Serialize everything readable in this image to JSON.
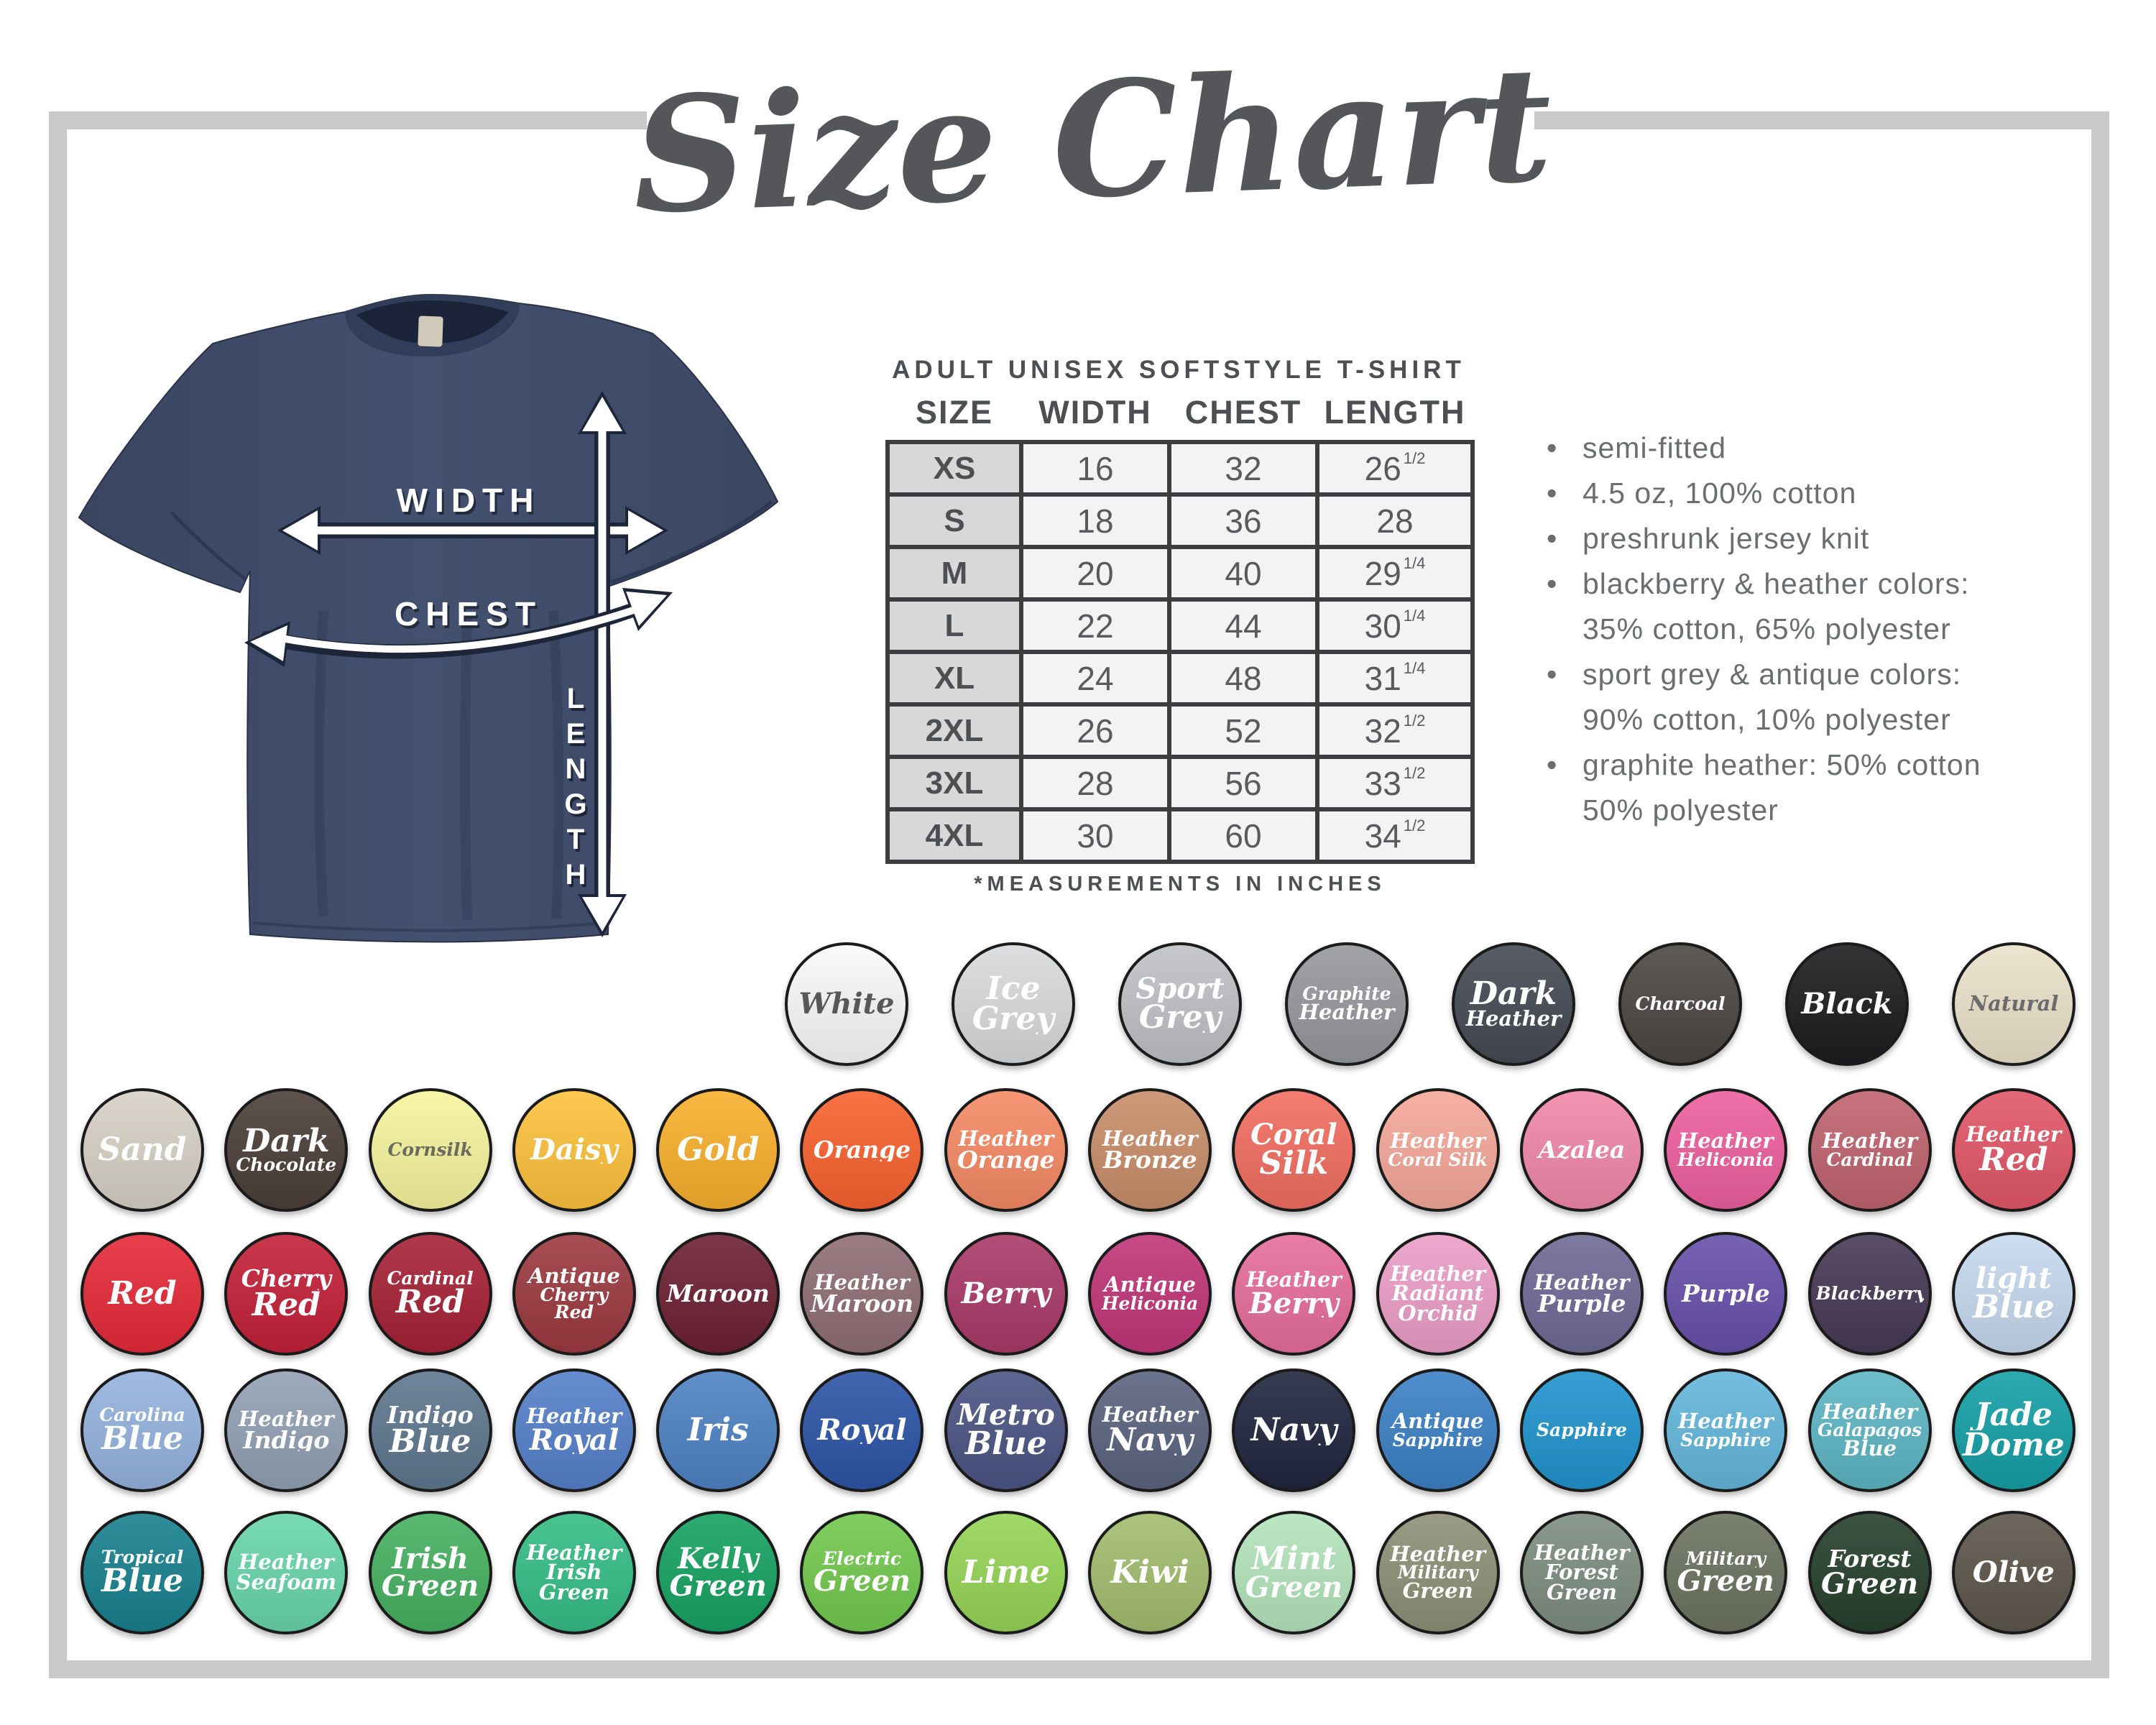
{
  "title": "Size Chart",
  "colors": {
    "frame": "#cacaca",
    "title_text": "#55565a",
    "table_border": "#3d3d3f",
    "size_column_bg": "#d8d8d8",
    "cell_bg": "#f3f3f4",
    "shirt_navy": "#3f4b6a",
    "feature_text": "#6c6d70"
  },
  "diagram": {
    "labels": {
      "width": "WIDTH",
      "chest": "CHEST",
      "length": "LENGTH"
    }
  },
  "product": {
    "heading": "ADULT UNISEX SOFTSTYLE T-SHIRT",
    "table": {
      "columns": [
        "SIZE",
        "WIDTH",
        "CHEST",
        "LENGTH"
      ],
      "rows": [
        {
          "size": "XS",
          "width": "16",
          "chest": "32",
          "length": "26",
          "frac": "1/2"
        },
        {
          "size": "S",
          "width": "18",
          "chest": "36",
          "length": "28",
          "frac": ""
        },
        {
          "size": "M",
          "width": "20",
          "chest": "40",
          "length": "29",
          "frac": "1/4"
        },
        {
          "size": "L",
          "width": "22",
          "chest": "44",
          "length": "30",
          "frac": "1/4"
        },
        {
          "size": "XL",
          "width": "24",
          "chest": "48",
          "length": "31",
          "frac": "1/4"
        },
        {
          "size": "2XL",
          "width": "26",
          "chest": "52",
          "length": "32",
          "frac": "1/2"
        },
        {
          "size": "3XL",
          "width": "28",
          "chest": "56",
          "length": "33",
          "frac": "1/2"
        },
        {
          "size": "4XL",
          "width": "30",
          "chest": "60",
          "length": "34",
          "frac": "1/2"
        }
      ],
      "footnote": "*MEASUREMENTS IN INCHES"
    },
    "features": [
      {
        "bullet": true,
        "text": "semi-fitted"
      },
      {
        "bullet": true,
        "text": "4.5 oz, 100% cotton"
      },
      {
        "bullet": true,
        "text": "preshrunk jersey knit"
      },
      {
        "bullet": true,
        "text": "blackberry & heather colors:"
      },
      {
        "bullet": false,
        "text": "35% cotton, 65% polyester"
      },
      {
        "bullet": true,
        "text": "sport grey & antique colors:"
      },
      {
        "bullet": false,
        "text": "90% cotton, 10% polyester"
      },
      {
        "bullet": true,
        "text": "graphite heather: 50% cotton"
      },
      {
        "bullet": false,
        "text": "50% polyester"
      }
    ]
  },
  "swatch_rows": [
    {
      "items": [
        {
          "name": "White",
          "color": "#f9f9f9",
          "text_color": "#58585a",
          "lines": [
            "White"
          ]
        },
        {
          "name": "Ice Grey",
          "color": "#d9dadb",
          "text_color": "#ffffff",
          "lines": [
            "Ice",
            "Grey"
          ]
        },
        {
          "name": "Sport Grey",
          "color": "#bfc1c6",
          "text_color": "#ffffff",
          "lines": [
            "Sport",
            "Grey"
          ]
        },
        {
          "name": "Graphite Heather",
          "color": "#97989c",
          "text_color": "#ffffff",
          "lines": [
            "Graphite",
            "Heather"
          ]
        },
        {
          "name": "Dark Heather",
          "color": "#454a54",
          "text_color": "#ffffff",
          "lines": [
            "Dark",
            "Heather"
          ]
        },
        {
          "name": "Charcoal",
          "color": "#4b4743",
          "text_color": "#ffffff",
          "lines": [
            "Charcoal"
          ]
        },
        {
          "name": "Black",
          "color": "#1d1d1f",
          "text_color": "#ffffff",
          "lines": [
            "Black"
          ]
        },
        {
          "name": "Natural",
          "color": "#ebe1ca",
          "text_color": "#6b6b6d",
          "lines": [
            "Natural"
          ]
        }
      ]
    },
    {
      "items": [
        {
          "name": "Sand",
          "color": "#d7d1c6",
          "text_color": "#ffffff",
          "lines": [
            "Sand"
          ]
        },
        {
          "name": "Dark Chocolate",
          "color": "#4b4038",
          "text_color": "#ffffff",
          "lines": [
            "Dark",
            "Chocolate"
          ]
        },
        {
          "name": "Cornsilk",
          "color": "#f6f49e",
          "text_color": "#6a6a5f",
          "lines": [
            "Cornsilk"
          ]
        },
        {
          "name": "Daisy",
          "color": "#fcc23c",
          "text_color": "#ffffff",
          "lines": [
            "Daisy"
          ]
        },
        {
          "name": "Gold",
          "color": "#f8b02c",
          "text_color": "#ffffff",
          "lines": [
            "Gold"
          ]
        },
        {
          "name": "Orange",
          "color": "#f9622f",
          "text_color": "#ffffff",
          "lines": [
            "Orange"
          ]
        },
        {
          "name": "Heather Orange",
          "color": "#f58a64",
          "text_color": "#ffffff",
          "lines": [
            "Heather",
            "Orange"
          ]
        },
        {
          "name": "Heather Bronze",
          "color": "#c98e6a",
          "text_color": "#ffffff",
          "lines": [
            "Heather",
            "Bronze"
          ]
        },
        {
          "name": "Coral Silk",
          "color": "#f26e60",
          "text_color": "#ffffff",
          "lines": [
            "Coral",
            "Silk"
          ]
        },
        {
          "name": "Heather Coral Silk",
          "color": "#f5a89a",
          "text_color": "#ffffff",
          "lines": [
            "Heather",
            "Coral Silk"
          ]
        },
        {
          "name": "Azalea",
          "color": "#f287aa",
          "text_color": "#ffffff",
          "lines": [
            "Azalea"
          ]
        },
        {
          "name": "Heather Heliconia",
          "color": "#ee5f9e",
          "text_color": "#ffffff",
          "lines": [
            "Heather",
            "Heliconia"
          ]
        },
        {
          "name": "Heather Cardinal",
          "color": "#c06470",
          "text_color": "#ffffff",
          "lines": [
            "Heather",
            "Cardinal"
          ]
        },
        {
          "name": "Heather Red",
          "color": "#e25768",
          "text_color": "#ffffff",
          "lines": [
            "Heather",
            "Red"
          ]
        }
      ]
    },
    {
      "items": [
        {
          "name": "Red",
          "color": "#e62a39",
          "text_color": "#ffffff",
          "lines": [
            "Red"
          ]
        },
        {
          "name": "Cherry Red",
          "color": "#c42139",
          "text_color": "#ffffff",
          "lines": [
            "Cherry",
            "Red"
          ]
        },
        {
          "name": "Cardinal Red",
          "color": "#a62236",
          "text_color": "#ffffff",
          "lines": [
            "Cardinal",
            "Red"
          ]
        },
        {
          "name": "Antique Cherry Red",
          "color": "#9b3a40",
          "text_color": "#ffffff",
          "lines": [
            "Antique",
            "Cherry Red"
          ]
        },
        {
          "name": "Maroon",
          "color": "#6d2134",
          "text_color": "#ffffff",
          "lines": [
            "Maroon"
          ]
        },
        {
          "name": "Heather Maroon",
          "color": "#8f6e74",
          "text_color": "#ffffff",
          "lines": [
            "Heather",
            "Maroon"
          ]
        },
        {
          "name": "Berry",
          "color": "#aa3a69",
          "text_color": "#ffffff",
          "lines": [
            "Berry"
          ]
        },
        {
          "name": "Antique Heliconia",
          "color": "#c13579",
          "text_color": "#ffffff",
          "lines": [
            "Antique",
            "Heliconia"
          ]
        },
        {
          "name": "Heather Berry",
          "color": "#e66e9b",
          "text_color": "#ffffff",
          "lines": [
            "Heather",
            "Berry"
          ]
        },
        {
          "name": "Heather Radiant Orchid",
          "color": "#ec9ec8",
          "text_color": "#ffffff",
          "lines": [
            "Heather",
            "Radiant",
            "Orchid"
          ]
        },
        {
          "name": "Heather Purple",
          "color": "#6f6a95",
          "text_color": "#ffffff",
          "lines": [
            "Heather",
            "Purple"
          ]
        },
        {
          "name": "Purple",
          "color": "#6750aa",
          "text_color": "#ffffff",
          "lines": [
            "Purple"
          ]
        },
        {
          "name": "Blackberry",
          "color": "#463a55",
          "text_color": "#ffffff",
          "lines": [
            "Blackberry"
          ]
        },
        {
          "name": "Light Blue",
          "color": "#c6d9ef",
          "text_color": "#ffffff",
          "lines": [
            "light",
            "Blue"
          ]
        }
      ]
    },
    {
      "items": [
        {
          "name": "Carolina Blue",
          "color": "#95b3de",
          "text_color": "#ffffff",
          "lines": [
            "Carolina",
            "Blue"
          ]
        },
        {
          "name": "Heather Indigo",
          "color": "#92a1b4",
          "text_color": "#ffffff",
          "lines": [
            "Heather",
            "Indigo"
          ]
        },
        {
          "name": "Indigo Blue",
          "color": "#5e778f",
          "text_color": "#ffffff",
          "lines": [
            "Indigo",
            "Blue"
          ]
        },
        {
          "name": "Heather Royal",
          "color": "#5580ca",
          "text_color": "#ffffff",
          "lines": [
            "Heather",
            "Royal"
          ]
        },
        {
          "name": "Iris",
          "color": "#4e83c3",
          "text_color": "#ffffff",
          "lines": [
            "Iris"
          ]
        },
        {
          "name": "Royal",
          "color": "#2c54a6",
          "text_color": "#ffffff",
          "lines": [
            "Royal"
          ]
        },
        {
          "name": "Metro Blue",
          "color": "#4b5583",
          "text_color": "#ffffff",
          "lines": [
            "Metro",
            "Blue"
          ]
        },
        {
          "name": "Heather Navy",
          "color": "#5b6480",
          "text_color": "#ffffff",
          "lines": [
            "Heather",
            "Navy"
          ]
        },
        {
          "name": "Navy",
          "color": "#20263f",
          "text_color": "#ffffff",
          "lines": [
            "Navy"
          ]
        },
        {
          "name": "Antique Sapphire",
          "color": "#3c81c5",
          "text_color": "#ffffff",
          "lines": [
            "Antique",
            "Sapphire"
          ]
        },
        {
          "name": "Sapphire",
          "color": "#2094cd",
          "text_color": "#ffffff",
          "lines": [
            "Sapphire"
          ]
        },
        {
          "name": "Heather Sapphire",
          "color": "#64b7dc",
          "text_color": "#ffffff",
          "lines": [
            "Heather",
            "Sapphire"
          ]
        },
        {
          "name": "Heather Galapagos Blue",
          "color": "#5db7c4",
          "text_color": "#ffffff",
          "lines": [
            "Heather",
            "Galapagos",
            "Blue"
          ]
        },
        {
          "name": "Jade Dome",
          "color": "#15a0a6",
          "text_color": "#ffffff",
          "lines": [
            "Jade",
            "Dome"
          ]
        }
      ]
    },
    {
      "items": [
        {
          "name": "Tropical Blue",
          "color": "#18818e",
          "text_color": "#ffffff",
          "lines": [
            "Tropical",
            "Blue"
          ]
        },
        {
          "name": "Heather Seafoam",
          "color": "#68d6ab",
          "text_color": "#ffffff",
          "lines": [
            "Heather",
            "Seafoam"
          ]
        },
        {
          "name": "Irish Green",
          "color": "#47b160",
          "text_color": "#ffffff",
          "lines": [
            "Irish",
            "Green"
          ]
        },
        {
          "name": "Heather Irish Green",
          "color": "#36bd87",
          "text_color": "#ffffff",
          "lines": [
            "Heather",
            "Irish",
            "Green"
          ]
        },
        {
          "name": "Kelly Green",
          "color": "#17a260",
          "text_color": "#ffffff",
          "lines": [
            "Kelly",
            "Green"
          ]
        },
        {
          "name": "Electric Green",
          "color": "#72c94e",
          "text_color": "#ffffff",
          "lines": [
            "Electric",
            "Green"
          ]
        },
        {
          "name": "Lime",
          "color": "#95d556",
          "text_color": "#ffffff",
          "lines": [
            "Lime"
          ]
        },
        {
          "name": "Kiwi",
          "color": "#a3bd6e",
          "text_color": "#ffffff",
          "lines": [
            "Kiwi"
          ]
        },
        {
          "name": "Mint Green",
          "color": "#b3e5bb",
          "text_color": "#ffffff",
          "lines": [
            "Mint",
            "Green"
          ]
        },
        {
          "name": "Heather Military Green",
          "color": "#8e9077",
          "text_color": "#ffffff",
          "lines": [
            "Heather",
            "Military",
            "Green"
          ]
        },
        {
          "name": "Heather Forest Green",
          "color": "#7d8d81",
          "text_color": "#ffffff",
          "lines": [
            "Heather",
            "Forest",
            "Green"
          ]
        },
        {
          "name": "Military Green",
          "color": "#6b7361",
          "text_color": "#ffffff",
          "lines": [
            "Military",
            "Green"
          ]
        },
        {
          "name": "Forest Green",
          "color": "#27402d",
          "text_color": "#ffffff",
          "lines": [
            "Forest",
            "Green"
          ]
        },
        {
          "name": "Olive",
          "color": "#5d564b",
          "text_color": "#ffffff",
          "lines": [
            "Olive"
          ]
        }
      ]
    }
  ]
}
